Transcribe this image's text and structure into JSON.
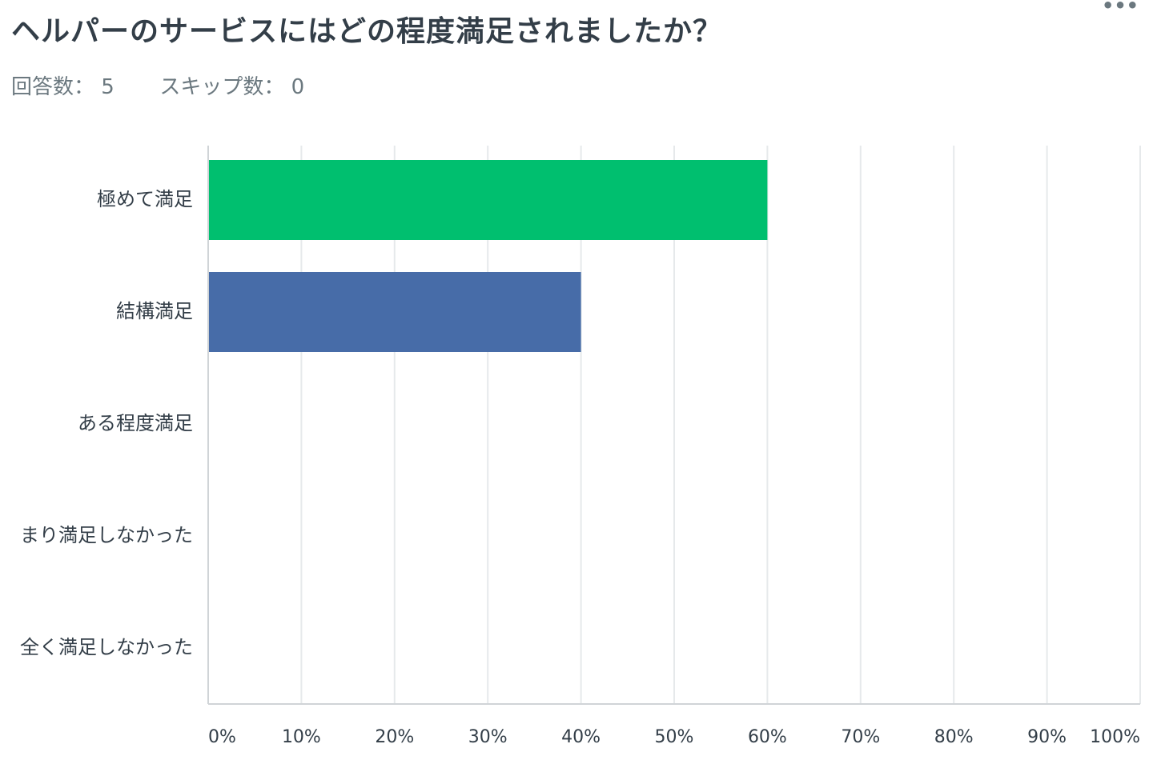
{
  "header": {
    "title": "ヘルパーのサービスにはどの程度満足されましたか？",
    "more_icon": "more-horizontal-icon",
    "more_glyph": "•••"
  },
  "stats": {
    "answered_label": "回答数：",
    "answered_value": "5",
    "skipped_label": "スキップ数：",
    "skipped_value": "0"
  },
  "chart_data": {
    "type": "bar",
    "orientation": "horizontal",
    "categories": [
      "極めて満足",
      "結構満足",
      "ある程度満足",
      "まり満足しなかった",
      "全く満足しなかった"
    ],
    "values": [
      60,
      40,
      0,
      0,
      0
    ],
    "colors": [
      "#00bf6f",
      "#476ca8",
      "#00bf6f",
      "#00bf6f",
      "#00bf6f"
    ],
    "xlim": [
      0,
      100
    ],
    "ticks": [
      0,
      10,
      20,
      30,
      40,
      50,
      60,
      70,
      80,
      90,
      100
    ],
    "tick_labels": [
      "0%",
      "10%",
      "20%",
      "30%",
      "40%",
      "50%",
      "60%",
      "70%",
      "80%",
      "90%",
      "100%"
    ],
    "grid": true,
    "legend": "none"
  }
}
